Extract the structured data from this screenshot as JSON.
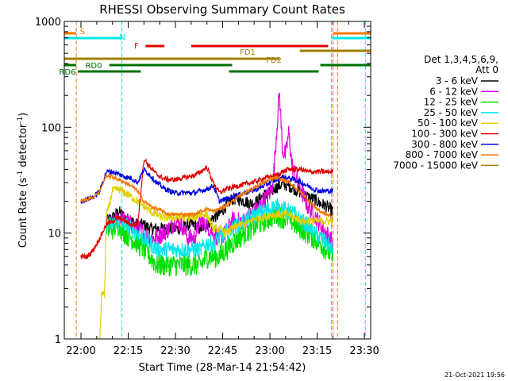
{
  "chart_data": {
    "type": "line",
    "title": "RHESSI Observing Summary Count Rates",
    "xlabel": "Start Time (28-Mar-14 21:54:42)",
    "ylabel_main": "Count Rate (s",
    "ylabel_exp1": "-1",
    "ylabel_mid": " detector",
    "ylabel_exp2": "-1",
    "ylabel_end": ")",
    "x_unit": "minutes after 22:00 UT on 28-Mar-2014",
    "xlim": [
      -5.3,
      92
    ],
    "ylim": [
      1,
      1000
    ],
    "yscale": "log",
    "x_ticks": [
      {
        "value": 0,
        "label": "22:00"
      },
      {
        "value": 15,
        "label": "22:15"
      },
      {
        "value": 30,
        "label": "22:30"
      },
      {
        "value": 45,
        "label": "22:45"
      },
      {
        "value": 60,
        "label": "23:00"
      },
      {
        "value": 75,
        "label": "23:15"
      },
      {
        "value": 90,
        "label": "23:30"
      }
    ],
    "y_ticks": [
      {
        "value": 1,
        "label": "1"
      },
      {
        "value": 10,
        "label": "10"
      },
      {
        "value": 100,
        "label": "100"
      },
      {
        "value": 1000,
        "label": "1000"
      }
    ],
    "legend_header": "Det 1,3,4,5,6,9,",
    "legend_header2": "Att 0",
    "legend_position": "right",
    "series": [
      {
        "name": "3 - 6 keV",
        "color": "#000000",
        "x": [
          8,
          10,
          12,
          14,
          16,
          18,
          20,
          22,
          24,
          26,
          28,
          30,
          32,
          34,
          36,
          38,
          40,
          42,
          44,
          46,
          48,
          50,
          52,
          54,
          56,
          58,
          60,
          62,
          64,
          66,
          68,
          70,
          72,
          74,
          76,
          78,
          80
        ],
        "y": [
          13,
          14,
          16,
          14,
          13,
          12,
          12,
          11,
          11,
          11,
          11,
          11,
          11,
          12,
          12,
          11,
          12,
          14,
          15,
          18,
          21,
          21,
          20,
          19,
          20,
          23,
          24,
          27,
          29,
          28,
          26,
          24,
          22,
          21,
          19,
          18,
          16
        ]
      },
      {
        "name": "6 - 12 keV",
        "color": "#e000e0",
        "x": [
          8,
          10,
          12,
          14,
          16,
          18,
          20,
          22,
          24,
          26,
          28,
          30,
          32,
          34,
          36,
          38,
          40,
          42,
          44,
          46,
          48,
          50,
          52,
          54,
          56,
          58,
          60,
          61,
          62,
          63,
          64,
          65,
          66,
          67,
          68,
          69,
          70,
          72,
          74,
          76,
          78,
          80
        ],
        "y": [
          12,
          12,
          14,
          13,
          12,
          11,
          10,
          9,
          9,
          10,
          11,
          13,
          12,
          9,
          9,
          13,
          12,
          10,
          9,
          10,
          13,
          13,
          13,
          15,
          17,
          20,
          24,
          30,
          80,
          220,
          60,
          55,
          90,
          45,
          35,
          30,
          25,
          18,
          15,
          12,
          10,
          8
        ]
      },
      {
        "name": "12 - 25 keV",
        "color": "#00e000",
        "x": [
          8,
          10,
          12,
          14,
          16,
          18,
          20,
          22,
          24,
          26,
          28,
          30,
          32,
          34,
          36,
          38,
          40,
          42,
          44,
          46,
          48,
          50,
          52,
          54,
          56,
          58,
          60,
          62,
          64,
          66,
          68,
          70,
          72,
          74,
          76,
          78,
          80
        ],
        "y": [
          11,
          11,
          12,
          10,
          9,
          8,
          7,
          6,
          5,
          5,
          5,
          5,
          5,
          5,
          5,
          5,
          6,
          6,
          6,
          7,
          8,
          9,
          10,
          11,
          12,
          13,
          14,
          15,
          14,
          14,
          12,
          11,
          10,
          9,
          8,
          7,
          6
        ]
      },
      {
        "name": "25 - 50 keV",
        "color": "#00e8e8",
        "x": [
          8,
          10,
          12,
          14,
          16,
          18,
          20,
          22,
          24,
          26,
          28,
          30,
          32,
          34,
          36,
          38,
          40,
          42,
          44,
          46,
          48,
          50,
          52,
          54,
          56,
          58,
          60,
          62,
          64,
          66,
          68,
          70,
          72,
          74,
          76,
          78,
          80
        ],
        "y": [
          12,
          12,
          13,
          12,
          11,
          10,
          9,
          8,
          7,
          7,
          7,
          7,
          7,
          7,
          7,
          7,
          8,
          8,
          9,
          10,
          11,
          12,
          13,
          14,
          15,
          16,
          17,
          18,
          17,
          16,
          15,
          13,
          12,
          10,
          9,
          8,
          7
        ]
      },
      {
        "name": "50 - 100 keV",
        "color": "#e0d000",
        "x": [
          6,
          6.5,
          7,
          7.5,
          8,
          10,
          12,
          14,
          16,
          18,
          20,
          22,
          24,
          26,
          28,
          30,
          32,
          34,
          36,
          38,
          40,
          42,
          44,
          46,
          48,
          50,
          52,
          54,
          56,
          58,
          60,
          62,
          64,
          66,
          68,
          70,
          72,
          74,
          76,
          78,
          80
        ],
        "y": [
          1.0,
          2.5,
          2.8,
          2.5,
          14,
          25,
          26,
          24,
          22,
          20,
          18,
          16,
          15,
          14,
          14,
          14,
          14,
          14,
          14,
          15,
          15,
          11,
          11,
          10,
          11,
          12,
          12,
          13,
          14,
          14,
          15,
          15,
          15,
          15,
          14,
          13,
          13,
          13,
          13,
          13,
          13
        ]
      },
      {
        "name": "100 - 300 keV",
        "color": "#e00000",
        "x": [
          0,
          2,
          4,
          6,
          8,
          10,
          12,
          14,
          16,
          18,
          20,
          22,
          24,
          26,
          28,
          30,
          32,
          34,
          36,
          38,
          40,
          42,
          44,
          46,
          48,
          50,
          52,
          54,
          56,
          58,
          60,
          62,
          64,
          66,
          68,
          70,
          72,
          74,
          76,
          78,
          80
        ],
        "y": [
          6,
          6,
          7,
          9,
          12,
          13,
          14,
          13,
          12,
          12,
          50,
          42,
          36,
          33,
          32,
          32,
          33,
          34,
          35,
          38,
          42,
          30,
          24,
          26,
          27,
          28,
          29,
          30,
          31,
          33,
          34,
          35,
          38,
          40,
          40,
          40,
          38,
          38,
          38,
          38,
          38
        ]
      },
      {
        "name": "300 - 800 keV",
        "color": "#0000e0",
        "x": [
          0,
          2,
          4,
          6,
          8,
          10,
          12,
          14,
          16,
          18,
          20,
          22,
          24,
          26,
          28,
          30,
          32,
          34,
          36,
          38,
          40,
          42,
          44,
          46,
          48,
          50,
          52,
          54,
          56,
          58,
          60,
          62,
          64,
          66,
          68,
          70,
          72,
          74,
          76,
          78,
          80
        ],
        "y": [
          20,
          21,
          22,
          25,
          38,
          38,
          36,
          34,
          33,
          30,
          40,
          35,
          30,
          27,
          25,
          24,
          24,
          24,
          24,
          25,
          26,
          28,
          20,
          21,
          22,
          23,
          24,
          25,
          26,
          28,
          30,
          32,
          34,
          33,
          32,
          30,
          28,
          26,
          25,
          25,
          25
        ]
      },
      {
        "name": "800 - 7000 keV",
        "color": "#f07800",
        "x": [
          0,
          2,
          4,
          6,
          8,
          10,
          12,
          14,
          16,
          18,
          20,
          22,
          24,
          26,
          28,
          30,
          32,
          34,
          36,
          38,
          40,
          42,
          44,
          46,
          48,
          50,
          52,
          54,
          56,
          58,
          60,
          62,
          64,
          66,
          68,
          70,
          72,
          74,
          76,
          78,
          80
        ],
        "y": [
          20,
          21,
          22,
          25,
          35,
          34,
          32,
          30,
          28,
          25,
          20,
          18,
          17,
          16,
          15,
          15,
          15,
          15,
          15,
          16,
          17,
          16,
          17,
          18,
          20,
          22,
          24,
          26,
          28,
          30,
          32,
          33,
          32,
          30,
          27,
          24,
          21,
          18,
          16,
          15,
          14
        ]
      },
      {
        "name": "7000 - 15000 keV",
        "color": "#a08000",
        "x": [],
        "y": []
      }
    ],
    "flag_bars": [
      {
        "label": "S",
        "color": "#f07800",
        "segments": [
          [
            -6,
            -1.5
          ],
          [
            80,
            98
          ]
        ]
      },
      {
        "label": "N",
        "color": "#00e8e8",
        "segments": [
          [
            -6,
            13
          ],
          [
            79.5,
            98
          ]
        ]
      },
      {
        "label": "F",
        "color": "#e00000",
        "segments": [
          [
            20.5,
            26.5
          ],
          [
            35,
            78.5
          ]
        ]
      },
      {
        "label": "FD1",
        "color": "#a08000",
        "segments": [
          [
            69.5,
            98
          ]
        ]
      },
      {
        "label": "FD2",
        "color": "#a08000",
        "segments": [
          [
            -6,
            63
          ]
        ]
      },
      {
        "label": "RD0",
        "color": "#007000",
        "segments": [
          [
            -6,
            -1.5
          ],
          [
            9,
            48
          ],
          [
            76,
            98
          ]
        ]
      },
      {
        "label": "RD6",
        "color": "#007000",
        "segments": [
          [
            -1,
            19
          ],
          [
            47,
            75.5
          ]
        ]
      }
    ],
    "vlines": [
      {
        "x": -1.5,
        "color": "#f07800"
      },
      {
        "x": 13,
        "color": "#00e8e8"
      },
      {
        "x": 79.5,
        "color": "#00e8e8"
      },
      {
        "x": 80,
        "color": "#f07800"
      },
      {
        "x": 81.5,
        "color": "#f07800"
      },
      {
        "x": 90.3,
        "color": "#00e8e8"
      }
    ],
    "grid": false
  },
  "footer": {
    "date_stamp": "21-Oct-2021 19:56"
  }
}
